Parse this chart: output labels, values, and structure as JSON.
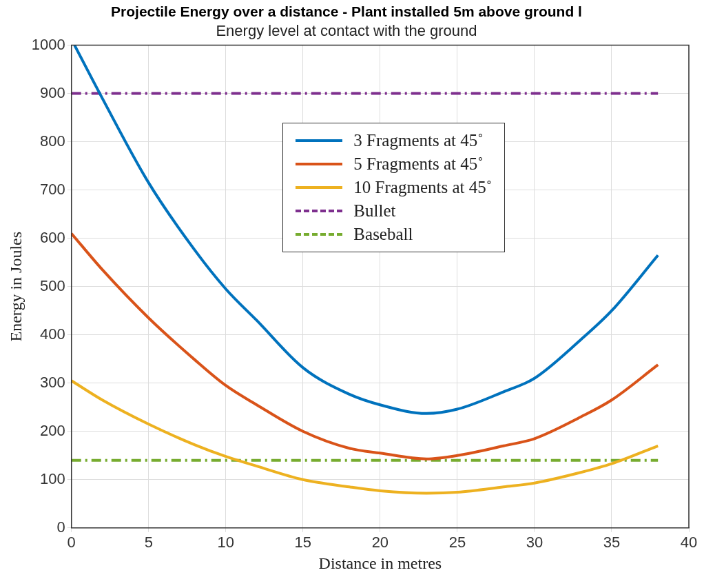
{
  "chart_data": {
    "type": "line",
    "title": "Projectile Energy over a distance - Plant installed 5m above ground l",
    "subtitle": "Energy level at contact with the ground",
    "xlabel": "Distance in metres",
    "ylabel": "Energy in Joules",
    "xlim": [
      0,
      40
    ],
    "xticks": [
      0,
      5,
      10,
      15,
      20,
      25,
      30,
      35,
      40
    ],
    "ylim": [
      0,
      1000
    ],
    "yticks": [
      0,
      100,
      200,
      300,
      400,
      500,
      600,
      700,
      800,
      900,
      1000
    ],
    "grid": true,
    "legend": "top",
    "marker": "none",
    "series": [
      {
        "name": "3 Fragments at 45˚",
        "color": "#0072bd",
        "x": [
          0.2,
          2,
          5,
          8,
          10,
          12,
          15,
          18,
          20,
          23,
          25,
          28,
          30,
          33,
          35,
          38
        ],
        "values": [
          1000,
          890,
          715,
          575,
          495,
          430,
          332,
          277,
          255,
          237,
          246,
          282,
          310,
          390,
          450,
          565
        ]
      },
      {
        "name": "5 Fragments at 45˚",
        "color": "#d95319",
        "x": [
          0,
          2,
          5,
          8,
          10,
          12,
          15,
          18,
          20,
          23,
          25,
          28,
          30,
          33,
          35,
          38
        ],
        "values": [
          610,
          535,
          435,
          348,
          295,
          255,
          200,
          165,
          155,
          143,
          150,
          170,
          185,
          230,
          265,
          338
        ]
      },
      {
        "name": "10 Fragments at 45˚",
        "color": "#edb120",
        "x": [
          0,
          2,
          5,
          8,
          10,
          12,
          15,
          18,
          20,
          23,
          25,
          28,
          30,
          33,
          35,
          38
        ],
        "values": [
          305,
          265,
          215,
          172,
          148,
          128,
          100,
          85,
          77,
          72,
          74,
          85,
          93,
          115,
          133,
          170
        ]
      },
      {
        "name": "Bullet",
        "color": "#7e2f8e",
        "line_style": "dashed",
        "x": [
          0,
          38
        ],
        "values": [
          900,
          900
        ]
      },
      {
        "name": "Baseball",
        "color": "#77ac30",
        "line_style": "dashed",
        "x": [
          0,
          38
        ],
        "values": [
          140,
          140
        ]
      }
    ]
  }
}
